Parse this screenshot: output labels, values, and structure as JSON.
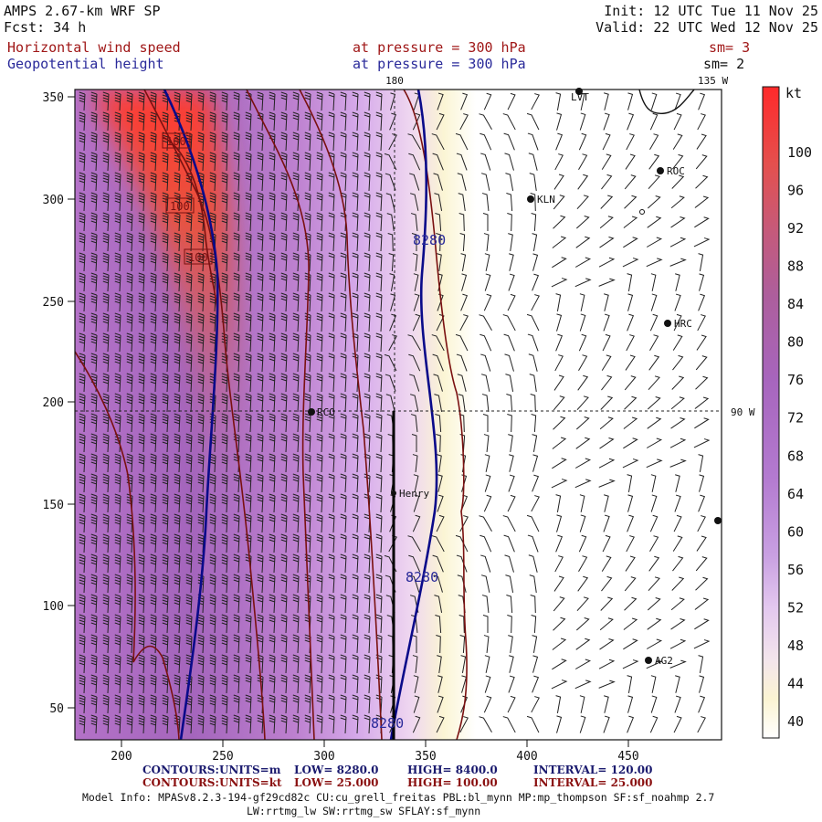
{
  "header": {
    "model": "AMPS 2.67-km WRF SP",
    "fcst": "Fcst:   34 h",
    "init": "Init: 12 UTC Tue 11 Nov 25",
    "valid": "Valid: 22 UTC Wed 12 Nov 25",
    "field1": "Horizontal wind speed",
    "field2": "Geopotential height",
    "level1": "at pressure =  300 hPa",
    "level2": "at pressure =  300 hPa",
    "sm1": "sm= 3",
    "sm2": "sm= 2"
  },
  "axes": {
    "x_ticks": [
      "200",
      "250",
      "300",
      "350",
      "400",
      "450"
    ],
    "y_ticks": [
      "350",
      "300",
      "250",
      "200",
      "150",
      "100",
      "50"
    ],
    "lon_180": "180",
    "lon_135w": "135 W",
    "lon_90w": "90 W"
  },
  "stations": [
    "LVT",
    "ROC",
    "KLN",
    "HRC",
    "RCO",
    "Henry",
    "AG2"
  ],
  "contour_labels": {
    "height": [
      "8280",
      "8280",
      "8280"
    ],
    "speed": [
      "100",
      "100",
      "100"
    ]
  },
  "colorbar": {
    "unit": "kt",
    "labels": [
      "100",
      "96",
      "92",
      "88",
      "84",
      "80",
      "76",
      "72",
      "68",
      "64",
      "60",
      "56",
      "52",
      "48",
      "44",
      "40"
    ]
  },
  "footer": {
    "c1_label": "CONTOURS:",
    "c1_units": "UNITS=m",
    "c1_low": "LOW=   8280.0",
    "c1_high": "HIGH=  8400.0",
    "c1_interval": "INTERVAL=   120.00",
    "c2_label": "CONTOURS:",
    "c2_units": "UNITS=kt",
    "c2_low": "LOW=   25.000",
    "c2_high": "HIGH=  100.00",
    "c2_interval": "INTERVAL=   25.000",
    "info1": "Model Info: MPASv8.2.3-194-gf29cd82c CU:cu_grell_freitas PBL:bl_mynn MP:mp_thompson SF:sf_noahmp 2.7",
    "info2": "LW:rrtmg_lw SW:rrtmg_sw SFLAY:sf_mynn"
  },
  "colors": {
    "height_contour": "#0a0a8a",
    "speed_contour": "#7a1010",
    "title_red": "#a01818",
    "title_blue": "#2a2a9a"
  }
}
